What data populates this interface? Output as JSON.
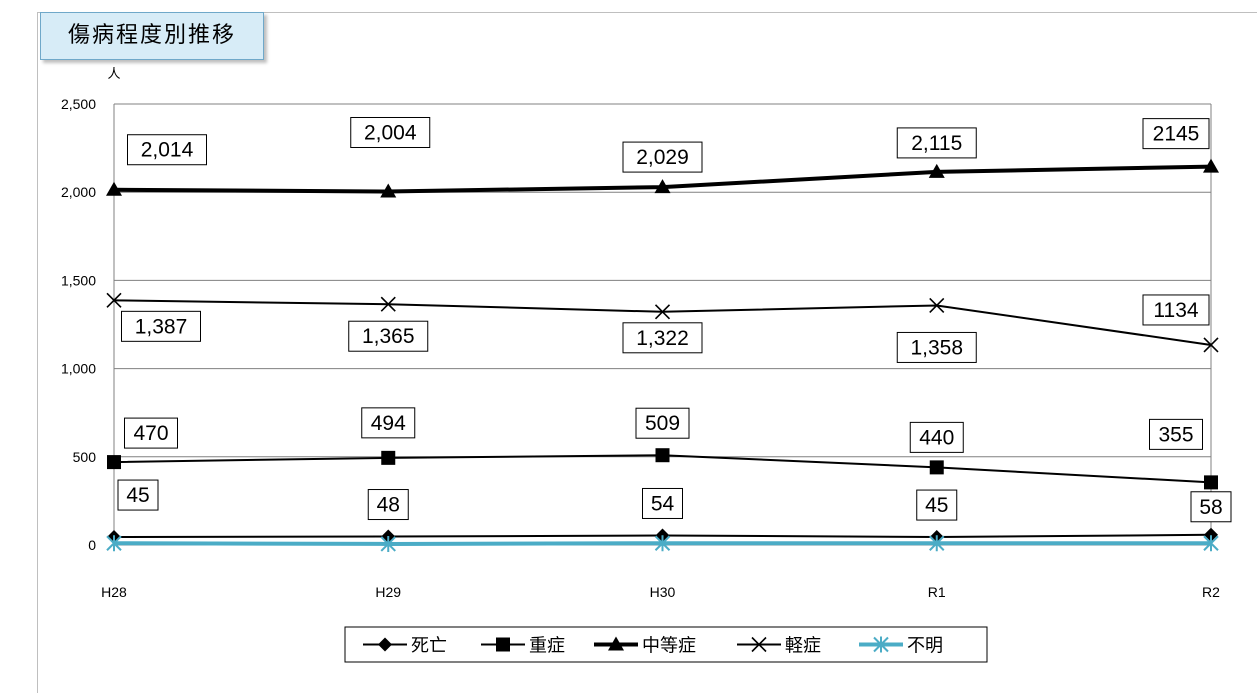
{
  "title": "傷病程度別推移",
  "chart_data": {
    "type": "line",
    "title": "傷病程度別推移",
    "unit": "人",
    "categories": [
      "H28",
      "H29",
      "H30",
      "R1",
      "R2"
    ],
    "ylim": [
      0,
      2500
    ],
    "yticks": [
      "0",
      "500",
      "1,000",
      "1,500",
      "2,000",
      "2,500"
    ],
    "grid": true,
    "legend_position": "bottom",
    "series": [
      {
        "name": "死亡",
        "values": [
          45,
          48,
          54,
          45,
          58
        ],
        "labels": [
          "45",
          "48",
          "54",
          "45",
          "58"
        ],
        "color": "#000000",
        "marker": "diamond"
      },
      {
        "name": "重症",
        "values": [
          470,
          494,
          509,
          440,
          355
        ],
        "labels": [
          "470",
          "494",
          "509",
          "440",
          "355"
        ],
        "color": "#000000",
        "marker": "square"
      },
      {
        "name": "中等症",
        "values": [
          2014,
          2004,
          2029,
          2115,
          2145
        ],
        "labels": [
          "2,014",
          "2,004",
          "2,029",
          "2,115",
          "2145"
        ],
        "color": "#000000",
        "marker": "triangle"
      },
      {
        "name": "軽症",
        "values": [
          1387,
          1365,
          1322,
          1358,
          1134
        ],
        "labels": [
          "1,387",
          "1,365",
          "1,322",
          "1,358",
          "1134"
        ],
        "color": "#000000",
        "marker": "x"
      },
      {
        "name": "不明",
        "values": [
          10,
          6,
          10,
          10,
          10
        ],
        "labels": [],
        "color": "#4bacc6",
        "marker": "asterisk"
      }
    ]
  }
}
